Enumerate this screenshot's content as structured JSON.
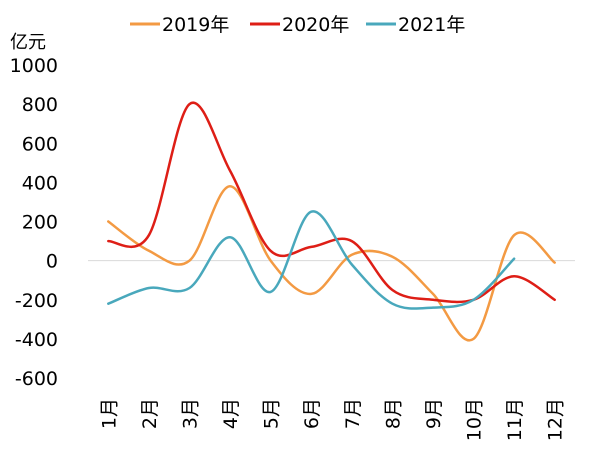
{
  "chart_data": {
    "type": "line",
    "unit_label": "亿元",
    "categories": [
      "1月",
      "2月",
      "3月",
      "4月",
      "5月",
      "6月",
      "7月",
      "8月",
      "9月",
      "10月",
      "11月",
      "12月"
    ],
    "ylim": [
      -600,
      1000
    ],
    "yticks": [
      1000,
      800,
      600,
      400,
      200,
      0,
      -200,
      -400,
      -600
    ],
    "ytick_labels": [
      "1000",
      "800",
      "600",
      "400",
      "200",
      "0",
      "-200",
      "-400",
      "-600"
    ],
    "grid": false,
    "smooth": true,
    "legend_position": "top",
    "series": [
      {
        "name": "2019年",
        "color": "#F39A43",
        "values": [
          200,
          50,
          0,
          380,
          0,
          -170,
          30,
          20,
          -170,
          -400,
          130,
          -10
        ]
      },
      {
        "name": "2020年",
        "color": "#DE1E16",
        "values": [
          100,
          130,
          800,
          460,
          50,
          70,
          100,
          -150,
          -200,
          -200,
          -80,
          -200
        ]
      },
      {
        "name": "2021年",
        "color": "#49A8BC",
        "values": [
          -220,
          -140,
          -140,
          120,
          -160,
          250,
          -20,
          -220,
          -240,
          -200,
          10,
          null
        ]
      }
    ]
  }
}
